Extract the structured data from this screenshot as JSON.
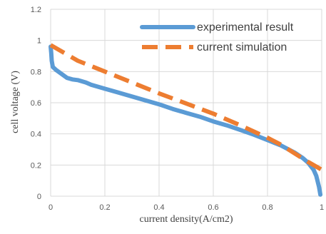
{
  "chart_data": {
    "type": "line",
    "title": "",
    "xlabel": "current density(A/cm2)",
    "ylabel": "cell voltage (V)",
    "xlim": [
      0,
      1
    ],
    "ylim": [
      0,
      1.2
    ],
    "x_ticks": [
      "0",
      "0.2",
      "0.4",
      "0.6",
      "0.8",
      "1"
    ],
    "y_ticks": [
      "0",
      "0.2",
      "0.4",
      "0.6",
      "0.8",
      "1",
      "1.2"
    ],
    "grid": true,
    "legend_position": "top-right",
    "series": [
      {
        "name": "experimental result",
        "color": "#5b9bd5",
        "style": "solid",
        "points": [
          [
            0.0,
            0.96
          ],
          [
            0.002,
            0.92
          ],
          [
            0.004,
            0.87
          ],
          [
            0.008,
            0.83
          ],
          [
            0.02,
            0.81
          ],
          [
            0.04,
            0.785
          ],
          [
            0.06,
            0.76
          ],
          [
            0.08,
            0.75
          ],
          [
            0.1,
            0.745
          ],
          [
            0.13,
            0.73
          ],
          [
            0.15,
            0.715
          ],
          [
            0.2,
            0.69
          ],
          [
            0.25,
            0.665
          ],
          [
            0.3,
            0.64
          ],
          [
            0.35,
            0.615
          ],
          [
            0.4,
            0.59
          ],
          [
            0.45,
            0.56
          ],
          [
            0.5,
            0.535
          ],
          [
            0.55,
            0.51
          ],
          [
            0.6,
            0.48
          ],
          [
            0.65,
            0.455
          ],
          [
            0.7,
            0.425
          ],
          [
            0.75,
            0.395
          ],
          [
            0.8,
            0.36
          ],
          [
            0.85,
            0.325
          ],
          [
            0.9,
            0.28
          ],
          [
            0.93,
            0.245
          ],
          [
            0.95,
            0.215
          ],
          [
            0.97,
            0.17
          ],
          [
            0.98,
            0.13
          ],
          [
            0.99,
            0.06
          ],
          [
            0.995,
            0.01
          ]
        ]
      },
      {
        "name": "current simulation",
        "color": "#ed7d31",
        "style": "dashed",
        "points": [
          [
            0.0,
            0.97
          ],
          [
            0.05,
            0.92
          ],
          [
            0.1,
            0.87
          ],
          [
            0.2,
            0.8
          ],
          [
            0.3,
            0.73
          ],
          [
            0.4,
            0.66
          ],
          [
            0.5,
            0.595
          ],
          [
            0.6,
            0.53
          ],
          [
            0.7,
            0.455
          ],
          [
            0.8,
            0.375
          ],
          [
            0.85,
            0.33
          ],
          [
            0.9,
            0.275
          ],
          [
            0.95,
            0.22
          ],
          [
            1.0,
            0.17
          ]
        ]
      }
    ]
  }
}
